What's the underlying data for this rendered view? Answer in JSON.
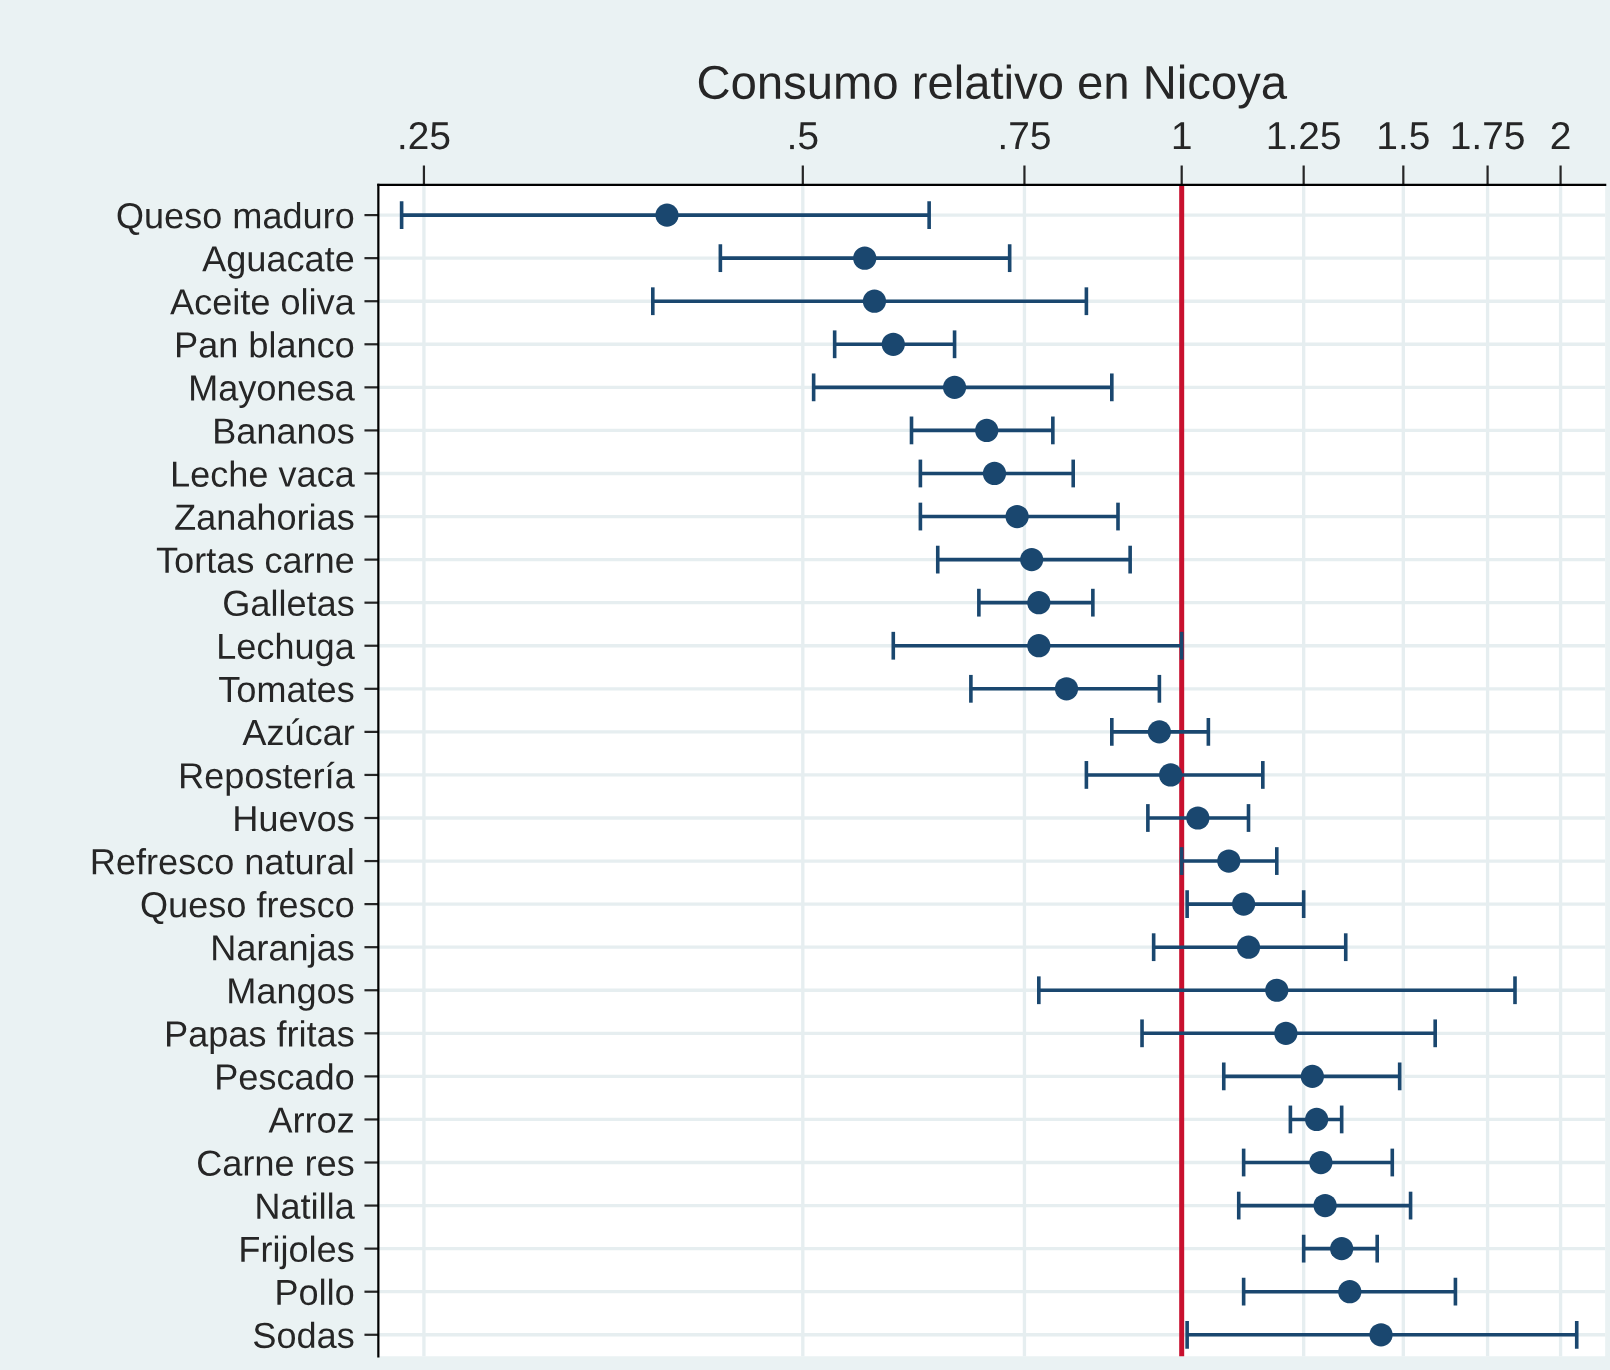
{
  "chart_data": {
    "type": "scatter",
    "orientation": "horizontal",
    "xlabel": "Consumo relativo en Nicoya",
    "categories": [
      "Queso maduro",
      "Aguacate",
      "Aceite oliva",
      "Pan blanco",
      "Mayonesa",
      "Bananos",
      "Leche vaca",
      "Zanahorias",
      "Tortas carne",
      "Galletas",
      "Lechuga",
      "Tomates",
      "Azúcar",
      "Repostería",
      "Huevos",
      "Refresco natural",
      "Queso fresco",
      "Naranjas",
      "Mangos",
      "Papas fritas",
      "Pescado",
      "Arroz",
      "Carne res",
      "Natilla",
      "Frijoles",
      "Pollo",
      "Sodas"
    ],
    "series": [
      {
        "color": "#1a476f",
        "values": [
          0.39,
          0.56,
          0.57,
          0.59,
          0.66,
          0.7,
          0.71,
          0.74,
          0.76,
          0.77,
          0.77,
          0.81,
          0.96,
          0.98,
          1.03,
          1.09,
          1.12,
          1.13,
          1.19,
          1.21,
          1.27,
          1.28,
          1.29,
          1.3,
          1.34,
          1.36,
          1.44
        ],
        "errors": [
          [
            0.24,
            0.63
          ],
          [
            0.43,
            0.73
          ],
          [
            0.38,
            0.84
          ],
          [
            0.53,
            0.66
          ],
          [
            0.51,
            0.88
          ],
          [
            0.61,
            0.79
          ],
          [
            0.62,
            0.82
          ],
          [
            0.62,
            0.89
          ],
          [
            0.64,
            0.91
          ],
          [
            0.69,
            0.85
          ],
          [
            0.59,
            1.0
          ],
          [
            0.68,
            0.96
          ],
          [
            0.88,
            1.05
          ],
          [
            0.84,
            1.16
          ],
          [
            0.94,
            1.13
          ],
          [
            1.0,
            1.19
          ],
          [
            1.01,
            1.25
          ],
          [
            0.95,
            1.35
          ],
          [
            0.77,
            1.84
          ],
          [
            0.93,
            1.59
          ],
          [
            1.08,
            1.49
          ],
          [
            1.22,
            1.34
          ],
          [
            1.12,
            1.47
          ],
          [
            1.11,
            1.52
          ],
          [
            1.25,
            1.43
          ],
          [
            1.12,
            1.65
          ],
          [
            1.01,
            2.06
          ]
        ]
      }
    ],
    "log": "x",
    "xlim": [
      0.23,
      2.17
    ],
    "xticks": [
      {
        "value": 0.25,
        "label": ".25"
      },
      {
        "value": 0.5,
        "label": ".5"
      },
      {
        "value": 0.75,
        "label": ".75"
      },
      1,
      1.25,
      1.5,
      1.75,
      2
    ],
    "ref_lines": [
      {
        "axis": "x",
        "value": 1,
        "color": "#c8102e"
      }
    ],
    "grid": true,
    "marker": "circle"
  }
}
